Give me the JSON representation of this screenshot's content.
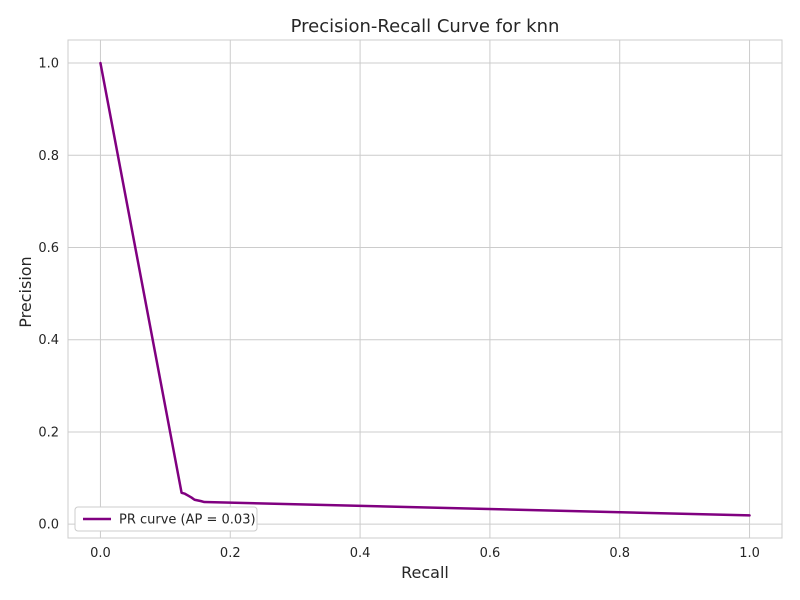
{
  "chart_data": {
    "type": "line",
    "title": "Precision-Recall Curve for knn",
    "xlabel": "Recall",
    "ylabel": "Precision",
    "xlim": [
      -0.05,
      1.05
    ],
    "ylim": [
      -0.03,
      1.05
    ],
    "xticks": [
      0.0,
      0.2,
      0.4,
      0.6,
      0.8,
      1.0
    ],
    "xtick_labels": [
      "0.0",
      "0.2",
      "0.4",
      "0.6",
      "0.8",
      "1.0"
    ],
    "yticks": [
      0.0,
      0.2,
      0.4,
      0.6,
      0.8,
      1.0
    ],
    "ytick_labels": [
      "0.0",
      "0.2",
      "0.4",
      "0.6",
      "0.8",
      "1.0"
    ],
    "grid": true,
    "legend_position": "lower-left",
    "series": [
      {
        "name": "PR curve (AP = 0.03)",
        "color": "#800080",
        "x": [
          0.0,
          0.125,
          0.13,
          0.135,
          0.14,
          0.145,
          0.155,
          0.16,
          1.0
        ],
        "y": [
          1.0,
          0.068,
          0.066,
          0.062,
          0.058,
          0.053,
          0.05,
          0.048,
          0.019
        ]
      }
    ]
  }
}
